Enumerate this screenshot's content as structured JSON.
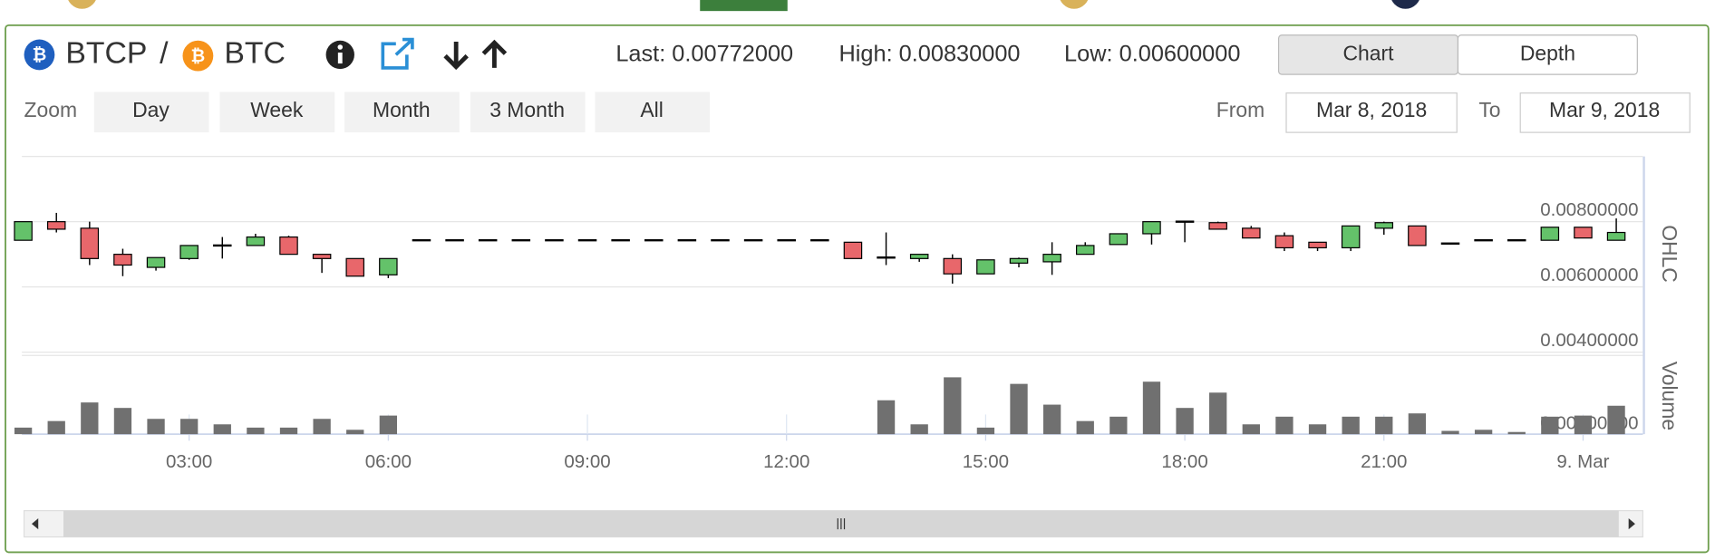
{
  "header": {
    "base": "BTCP",
    "separator": "/",
    "quote": "BTC",
    "stats": [
      {
        "label": "Last:",
        "value": "0.00772000"
      },
      {
        "label": "High:",
        "value": "0.00830000"
      },
      {
        "label": "Low:",
        "value": "0.00600000"
      }
    ],
    "tabs": [
      "Chart",
      "Depth"
    ]
  },
  "zoom": {
    "label": "Zoom",
    "buttons": [
      "Day",
      "Week",
      "Month",
      "3 Month",
      "All"
    ],
    "from_label": "From",
    "from": "Mar 8, 2018",
    "to_label": "To",
    "to": "Mar 9, 2018"
  },
  "chart_data": {
    "type": "candlestick",
    "y_title": "OHLC",
    "volume_title": "Volume",
    "up_color": "#64c26a",
    "down_color": "#e8676b",
    "volume_color": "#707070",
    "line_color": "#000000",
    "x": [
      0.5,
      1,
      1.5,
      2,
      2.5,
      3,
      3.5,
      4,
      4.5,
      5,
      5.5,
      6,
      6.5,
      7,
      7.5,
      8,
      8.5,
      9,
      9.5,
      10,
      10.5,
      11,
      11.5,
      12,
      12.5,
      13,
      13.5,
      14,
      14.5,
      15,
      15.5,
      16,
      16.5,
      17,
      17.5,
      18,
      18.5,
      19,
      19.5,
      20,
      20.5,
      21,
      21.5,
      22,
      22.5,
      23,
      23.5,
      24,
      24.5
    ],
    "open": [
      0.00743,
      0.008,
      0.0078,
      0.007,
      0.0066,
      0.00687,
      0.00727,
      0.00727,
      0.00753,
      0.007,
      0.00687,
      0.00637,
      0.00743,
      0.00743,
      0.00743,
      0.00743,
      0.00743,
      0.00743,
      0.00743,
      0.00743,
      0.00743,
      0.00743,
      0.00743,
      0.00743,
      0.00743,
      0.00737,
      0.0069,
      0.00687,
      0.00687,
      0.0064,
      0.00673,
      0.00677,
      0.007,
      0.0073,
      0.00763,
      0.008,
      0.00797,
      0.0078,
      0.00757,
      0.00737,
      0.0072,
      0.0078,
      0.00787,
      0.00733,
      0.00743,
      0.00743,
      0.00743,
      0.00783,
      0.00743
    ],
    "high": [
      0.008,
      0.00827,
      0.008,
      0.00717,
      0.0069,
      0.00727,
      0.00753,
      0.00763,
      0.00757,
      0.007,
      0.00687,
      0.00687,
      0.00743,
      0.00743,
      0.00743,
      0.00743,
      0.00743,
      0.00743,
      0.00743,
      0.00743,
      0.00743,
      0.00743,
      0.00743,
      0.00743,
      0.00743,
      0.00737,
      0.00767,
      0.007,
      0.007,
      0.00683,
      0.0069,
      0.00737,
      0.00737,
      0.00763,
      0.008,
      0.008,
      0.008,
      0.00787,
      0.00767,
      0.00737,
      0.00787,
      0.008,
      0.00787,
      0.00733,
      0.00743,
      0.00743,
      0.00783,
      0.00783,
      0.0081
    ],
    "low": [
      0.00743,
      0.00767,
      0.00667,
      0.00633,
      0.0065,
      0.00683,
      0.00687,
      0.00727,
      0.007,
      0.00643,
      0.00633,
      0.00627,
      0.00743,
      0.00743,
      0.00743,
      0.00743,
      0.00743,
      0.00743,
      0.00743,
      0.00743,
      0.00743,
      0.00743,
      0.00743,
      0.00743,
      0.00743,
      0.00687,
      0.00667,
      0.00677,
      0.0061,
      0.0064,
      0.0066,
      0.00637,
      0.007,
      0.0073,
      0.0073,
      0.00737,
      0.00777,
      0.0075,
      0.0071,
      0.0071,
      0.0071,
      0.0076,
      0.00727,
      0.0073,
      0.00743,
      0.00743,
      0.00743,
      0.0075,
      0.00743
    ],
    "close": [
      0.008,
      0.00777,
      0.00687,
      0.00667,
      0.0069,
      0.00727,
      0.00727,
      0.00753,
      0.007,
      0.00687,
      0.00633,
      0.00687,
      0.00743,
      0.00743,
      0.00743,
      0.00743,
      0.00743,
      0.00743,
      0.00743,
      0.00743,
      0.00743,
      0.00743,
      0.00743,
      0.00743,
      0.00743,
      0.00687,
      0.0069,
      0.007,
      0.0064,
      0.00683,
      0.00687,
      0.007,
      0.00727,
      0.00763,
      0.008,
      0.008,
      0.00777,
      0.0075,
      0.0072,
      0.0072,
      0.00787,
      0.00797,
      0.00727,
      0.0073,
      0.00743,
      0.00743,
      0.00783,
      0.0075,
      0.00767
    ],
    "volume": [
      6,
      12,
      29,
      24,
      14,
      14,
      9,
      6,
      6,
      14,
      4,
      17,
      0,
      0,
      0,
      0,
      0,
      0,
      0,
      0,
      0,
      0,
      0,
      0,
      0,
      0,
      31,
      9,
      52,
      6,
      46,
      27,
      12,
      16,
      48,
      24,
      38,
      9,
      16,
      9,
      16,
      16,
      19,
      3,
      4,
      2,
      16,
      17,
      26
    ],
    "xlim": [
      0.48,
      24.9
    ],
    "xticks": [
      {
        "value": 3,
        "label": "03:00"
      },
      {
        "value": 6,
        "label": "06:00"
      },
      {
        "value": 9,
        "label": "09:00"
      },
      {
        "value": 12,
        "label": "12:00"
      },
      {
        "value": 15,
        "label": "15:00"
      },
      {
        "value": 18,
        "label": "18:00"
      },
      {
        "value": 21,
        "label": "21:00"
      },
      {
        "value": 24,
        "label": "9. Mar"
      }
    ],
    "ylim": [
      0.004,
      0.01
    ],
    "yticks": [
      {
        "value": 0.004,
        "label": "0.00400000"
      },
      {
        "value": 0.006,
        "label": "0.00600000"
      },
      {
        "value": 0.008,
        "label": "0.00800000"
      }
    ],
    "volume_ylim": [
      0,
      70
    ],
    "volume_yticks": [
      {
        "value": 0,
        "label": "0.00000000"
      }
    ],
    "grid": true
  }
}
